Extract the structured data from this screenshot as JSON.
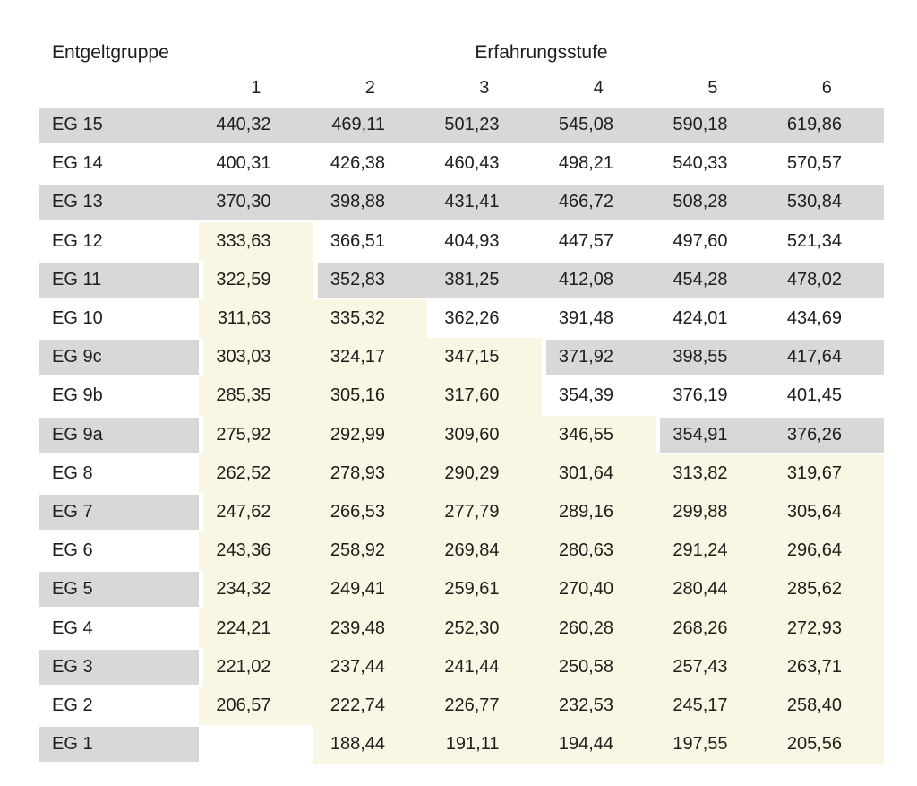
{
  "table": {
    "corner_label": "Entgeltgruppe",
    "group_header": "Erfahrungsstufe",
    "level_headers": [
      "1",
      "2",
      "3",
      "4",
      "5",
      "6"
    ],
    "rows": [
      {
        "label": "EG 15",
        "values": [
          "440,32",
          "469,11",
          "501,23",
          "545,08",
          "590,18",
          "619,86"
        ],
        "bgs": [
          "g",
          "g",
          "g",
          "g",
          "g",
          "g",
          "g"
        ]
      },
      {
        "label": "EG 14",
        "values": [
          "400,31",
          "426,38",
          "460,43",
          "498,21",
          "540,33",
          "570,57"
        ],
        "bgs": [
          "w",
          "w",
          "w",
          "w",
          "w",
          "w",
          "w"
        ]
      },
      {
        "label": "EG 13",
        "values": [
          "370,30",
          "398,88",
          "431,41",
          "466,72",
          "508,28",
          "530,84"
        ],
        "bgs": [
          "g",
          "g",
          "g",
          "g",
          "g",
          "g",
          "g"
        ]
      },
      {
        "label": "EG 12",
        "values": [
          "333,63",
          "366,51",
          "404,93",
          "447,57",
          "497,60",
          "521,34"
        ],
        "bgs": [
          "w",
          "c",
          "w",
          "w",
          "w",
          "w",
          "w"
        ]
      },
      {
        "label": "EG 11",
        "values": [
          "322,59",
          "352,83",
          "381,25",
          "412,08",
          "454,28",
          "478,02"
        ],
        "bgs": [
          "g",
          "c",
          "g",
          "g",
          "g",
          "g",
          "g"
        ]
      },
      {
        "label": "EG 10",
        "values": [
          "311,63",
          "335,32",
          "362,26",
          "391,48",
          "424,01",
          "434,69"
        ],
        "bgs": [
          "w",
          "c",
          "c",
          "w",
          "w",
          "w",
          "w"
        ]
      },
      {
        "label": "EG 9c",
        "values": [
          "303,03",
          "324,17",
          "347,15",
          "371,92",
          "398,55",
          "417,64"
        ],
        "bgs": [
          "g",
          "c",
          "c",
          "c",
          "g",
          "g",
          "g"
        ]
      },
      {
        "label": "EG 9b",
        "values": [
          "285,35",
          "305,16",
          "317,60",
          "354,39",
          "376,19",
          "401,45"
        ],
        "bgs": [
          "w",
          "c",
          "c",
          "c",
          "w",
          "w",
          "w"
        ]
      },
      {
        "label": "EG 9a",
        "values": [
          "275,92",
          "292,99",
          "309,60",
          "346,55",
          "354,91",
          "376,26"
        ],
        "bgs": [
          "g",
          "c",
          "c",
          "c",
          "c",
          "g",
          "g"
        ]
      },
      {
        "label": "EG 8",
        "values": [
          "262,52",
          "278,93",
          "290,29",
          "301,64",
          "313,82",
          "319,67"
        ],
        "bgs": [
          "w",
          "c",
          "c",
          "c",
          "c",
          "c",
          "c"
        ]
      },
      {
        "label": "EG 7",
        "values": [
          "247,62",
          "266,53",
          "277,79",
          "289,16",
          "299,88",
          "305,64"
        ],
        "bgs": [
          "g",
          "c",
          "c",
          "c",
          "c",
          "c",
          "c"
        ]
      },
      {
        "label": "EG 6",
        "values": [
          "243,36",
          "258,92",
          "269,84",
          "280,63",
          "291,24",
          "296,64"
        ],
        "bgs": [
          "w",
          "c",
          "c",
          "c",
          "c",
          "c",
          "c"
        ]
      },
      {
        "label": "EG 5",
        "values": [
          "234,32",
          "249,41",
          "259,61",
          "270,40",
          "280,44",
          "285,62"
        ],
        "bgs": [
          "g",
          "c",
          "c",
          "c",
          "c",
          "c",
          "c"
        ]
      },
      {
        "label": "EG 4",
        "values": [
          "224,21",
          "239,48",
          "252,30",
          "260,28",
          "268,26",
          "272,93"
        ],
        "bgs": [
          "w",
          "c",
          "c",
          "c",
          "c",
          "c",
          "c"
        ]
      },
      {
        "label": "EG 3",
        "values": [
          "221,02",
          "237,44",
          "241,44",
          "250,58",
          "257,43",
          "263,71"
        ],
        "bgs": [
          "g",
          "c",
          "c",
          "c",
          "c",
          "c",
          "c"
        ]
      },
      {
        "label": "EG 2",
        "values": [
          "206,57",
          "222,74",
          "226,77",
          "232,53",
          "245,17",
          "258,40"
        ],
        "bgs": [
          "w",
          "c",
          "c",
          "c",
          "c",
          "c",
          "c"
        ]
      },
      {
        "label": "EG 1",
        "values": [
          "",
          "188,44",
          "191,11",
          "194,44",
          "197,55",
          "205,56"
        ],
        "bgs": [
          "g",
          "w",
          "c",
          "c",
          "c",
          "c",
          "c"
        ]
      }
    ]
  },
  "colors": {
    "row_gray": "#d8d8d8",
    "highlight_cream": "#f9f7e3",
    "text": "#1e1e1c",
    "background": "#ffffff"
  }
}
